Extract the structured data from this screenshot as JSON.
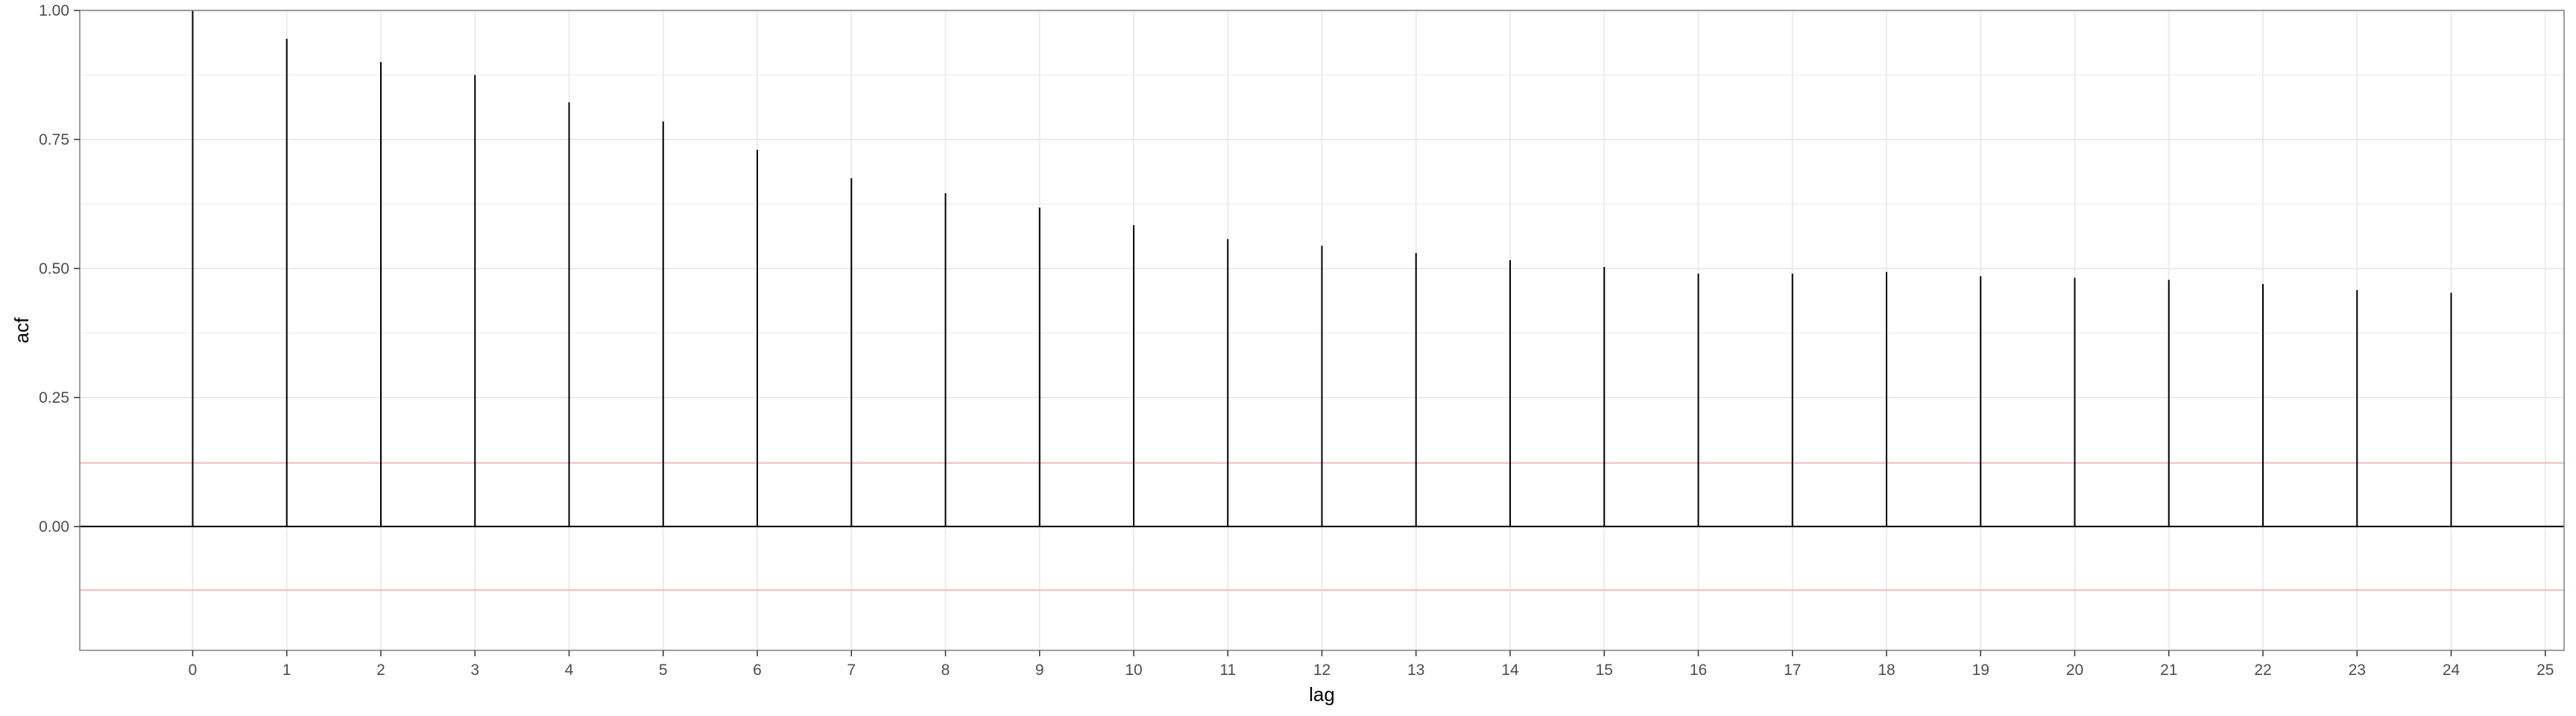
{
  "chart_data": {
    "type": "bar",
    "xlabel": "lag",
    "ylabel": "acf",
    "x": [
      0,
      1,
      2,
      3,
      4,
      5,
      6,
      7,
      8,
      9,
      10,
      11,
      12,
      13,
      14,
      15,
      16,
      17,
      18,
      19,
      20,
      21,
      22,
      23,
      24
    ],
    "values": [
      1.0,
      0.945,
      0.9,
      0.875,
      0.822,
      0.785,
      0.73,
      0.675,
      0.646,
      0.618,
      0.584,
      0.557,
      0.544,
      0.53,
      0.516,
      0.503,
      0.49,
      0.49,
      0.493,
      0.485,
      0.482,
      0.478,
      0.47,
      0.458,
      0.453
    ],
    "xlim": [
      -1.2,
      25.2
    ],
    "ylim": [
      -0.24,
      1.0
    ],
    "x_ticks": [
      "0",
      "1",
      "2",
      "3",
      "4",
      "5",
      "6",
      "7",
      "8",
      "9",
      "10",
      "11",
      "12",
      "13",
      "14",
      "15",
      "16",
      "17",
      "18",
      "19",
      "20",
      "21",
      "22",
      "23",
      "24",
      "25"
    ],
    "y_ticks": [
      "1.00",
      "0.75",
      "0.50",
      "0.25",
      "0.00"
    ],
    "significance_bounds": [
      0.123,
      -0.123
    ],
    "grid": true,
    "colors": {
      "bars": "#000000",
      "significance": "#f7c3c6",
      "grid": "#ebebeb",
      "panel_border": "#7f7f7f"
    }
  }
}
